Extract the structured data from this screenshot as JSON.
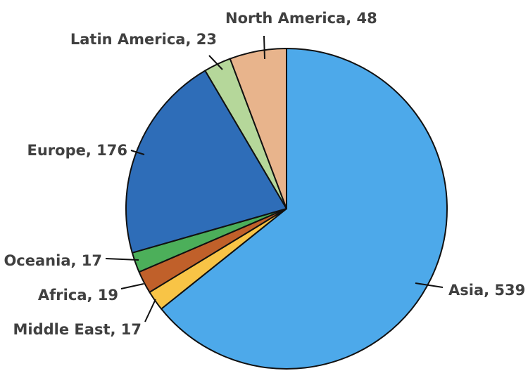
{
  "chart_data": {
    "type": "pie",
    "title": "",
    "start_angle_deg": 0,
    "direction": "clockwise",
    "legend": "none",
    "slices": [
      {
        "label": "Asia",
        "value": 539,
        "color": "#4DA9EA"
      },
      {
        "label": "Middle East",
        "value": 17,
        "color": "#F8C446"
      },
      {
        "label": "Africa",
        "value": 19,
        "color": "#C0602A"
      },
      {
        "label": "Oceania",
        "value": 17,
        "color": "#4CAF5A"
      },
      {
        "label": "Europe",
        "value": 176,
        "color": "#2E6DB8"
      },
      {
        "label": "Latin America",
        "value": 23,
        "color": "#B5D79A"
      },
      {
        "label": "North America",
        "value": 48,
        "color": "#E8B48C"
      }
    ]
  }
}
